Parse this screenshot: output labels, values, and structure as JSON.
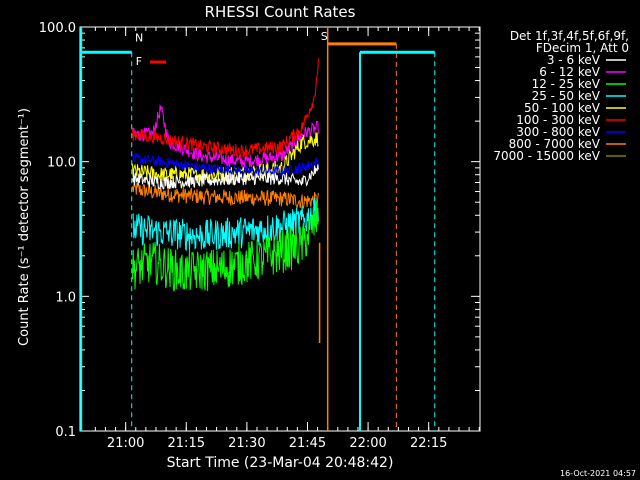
{
  "chart_data": {
    "type": "line",
    "title": "RHESSI Count Rates",
    "xlabel": "Start Time (23-Mar-04 20:48:42)",
    "ylabel": "Count Rate (s⁻¹ detector segment⁻¹)",
    "yscale": "log",
    "ylim": [
      0.1,
      100
    ],
    "xlim_minutes_from_start": [
      0,
      99
    ],
    "x_ticks": [
      "21:00",
      "21:15",
      "21:30",
      "21:45",
      "22:00",
      "22:15"
    ],
    "x_ticks_minutes_from_start": [
      11.3,
      26.3,
      41.3,
      56.3,
      71.3,
      86.3
    ],
    "y_ticks": [
      "0.1",
      "1.0",
      "10.0",
      "100.0"
    ],
    "y_tick_values": [
      0.1,
      1,
      10,
      100
    ],
    "legend_header": [
      "Det 1f,3f,4f,5f,6f,9f,",
      "FDecim 1, Att 0"
    ],
    "legend_position": "right",
    "series": [
      {
        "name": "3 - 6 keV",
        "color": "#ffffff",
        "times": [
          13,
          20,
          30,
          40,
          50,
          55,
          59
        ],
        "values": [
          7.5,
          7.0,
          7.2,
          7.5,
          7.5,
          7.0,
          9
        ]
      },
      {
        "name": "6 - 12 keV",
        "color": "#ff00ff",
        "times": [
          13,
          18,
          20,
          22,
          30,
          40,
          50,
          55,
          59
        ],
        "values": [
          16,
          16,
          25,
          14,
          11,
          10,
          11,
          16,
          18
        ]
      },
      {
        "name": "12 - 25 keV",
        "color": "#00ff00",
        "times": [
          13,
          18,
          25,
          35,
          45,
          55,
          59
        ],
        "values": [
          1.6,
          1.8,
          1.5,
          1.6,
          1.9,
          2.4,
          4.0
        ]
      },
      {
        "name": "25 - 50 keV",
        "color": "#00ffff",
        "times": [
          13,
          20,
          30,
          40,
          50,
          55,
          59
        ],
        "values": [
          3.2,
          3.0,
          2.8,
          3.0,
          3.3,
          3.6,
          4.3
        ]
      },
      {
        "name": "50 - 100 keV",
        "color": "#ffff00",
        "times": [
          13,
          20,
          30,
          40,
          50,
          55,
          59
        ],
        "values": [
          8.5,
          8.0,
          8.0,
          8.2,
          9,
          14,
          15
        ]
      },
      {
        "name": "100 - 300 keV",
        "color": "#ff0000",
        "times": [
          13,
          20,
          30,
          40,
          50,
          55,
          58,
          59
        ],
        "values": [
          16,
          15,
          13,
          12,
          13,
          18,
          30,
          55
        ]
      },
      {
        "name": "300 - 800 keV",
        "color": "#0000ff",
        "times": [
          13,
          20,
          30,
          40,
          50,
          55,
          59
        ],
        "values": [
          10.5,
          10,
          9,
          8.5,
          8.5,
          9,
          10
        ]
      },
      {
        "name": "800 - 7000 keV",
        "color": "#ff8000",
        "times": [
          13,
          20,
          30,
          40,
          50,
          55,
          59
        ],
        "values": [
          6.3,
          5.8,
          5.5,
          5.4,
          5.3,
          5.1,
          5.2
        ]
      },
      {
        "name": "7000 - 15000 keV",
        "color": "#808000",
        "times": [],
        "values": []
      }
    ],
    "annotations": [
      {
        "label": "N",
        "color": "#00ffff"
      },
      {
        "label": "F",
        "color": "#ff0000"
      },
      {
        "label": "S",
        "color": "#ff8000"
      }
    ],
    "timestamp": "16-Oct-2021 04:57"
  }
}
